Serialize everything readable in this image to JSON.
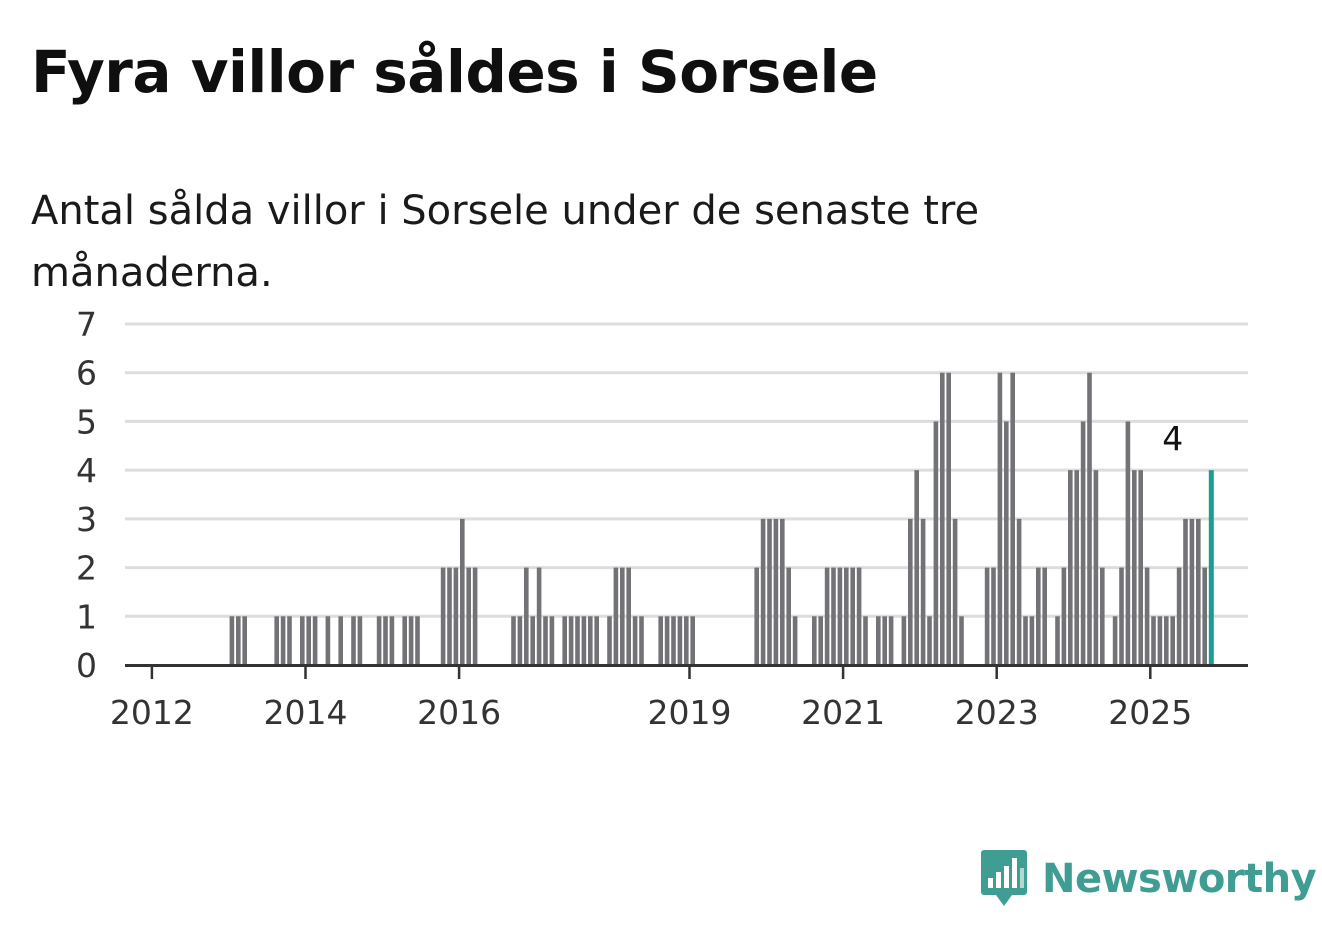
{
  "title": "Fyra villor såldes i Sorsele",
  "subtitle": "Antal sålda villor i Sorsele under de senaste tre månaderna.",
  "brand": {
    "name": "Newsworthy",
    "color": "#3f9d93",
    "icon": "newsworthy-logo-icon"
  },
  "colors": {
    "bar": "#737377",
    "highlight": "#1a9e92",
    "grid": "#dddddd",
    "axis": "#333333"
  },
  "chart_data": {
    "type": "bar",
    "title": "Fyra villor såldes i Sorsele",
    "subtitle": "Antal sålda villor i Sorsele under de senaste tre månaderna.",
    "xlabel": "",
    "ylabel": "",
    "ylim": [
      0,
      7
    ],
    "yticks": [
      0,
      1,
      2,
      3,
      4,
      5,
      6,
      7
    ],
    "xticks": [
      "2012",
      "2014",
      "2016",
      "2019",
      "2021",
      "2023",
      "2025"
    ],
    "grid": true,
    "x_start": "2011-09",
    "x_end": "2025-04",
    "values": [
      0,
      0,
      0,
      0,
      0,
      0,
      0,
      0,
      0,
      0,
      0,
      0,
      0,
      0,
      0,
      0,
      1,
      1,
      1,
      0,
      0,
      0,
      0,
      1,
      1,
      1,
      0,
      1,
      1,
      1,
      0,
      1,
      0,
      1,
      0,
      1,
      1,
      0,
      0,
      1,
      1,
      1,
      0,
      1,
      1,
      1,
      0,
      0,
      0,
      2,
      2,
      2,
      3,
      2,
      2,
      0,
      0,
      0,
      0,
      0,
      1,
      1,
      2,
      1,
      2,
      1,
      1,
      0,
      1,
      1,
      1,
      1,
      1,
      1,
      0,
      1,
      2,
      2,
      2,
      1,
      1,
      0,
      0,
      1,
      1,
      1,
      1,
      1,
      1,
      0,
      0,
      0,
      0,
      0,
      0,
      0,
      0,
      0,
      2,
      3,
      3,
      3,
      3,
      2,
      1,
      0,
      0,
      1,
      1,
      2,
      2,
      2,
      2,
      2,
      2,
      1,
      0,
      1,
      1,
      1,
      0,
      1,
      3,
      4,
      3,
      1,
      5,
      6,
      6,
      3,
      1,
      0,
      0,
      0,
      2,
      2,
      6,
      5,
      6,
      3,
      1,
      1,
      2,
      2,
      0,
      1,
      2,
      4,
      4,
      5,
      6,
      4,
      2,
      0,
      1,
      2,
      5,
      4,
      4,
      2,
      1,
      1,
      1,
      1,
      2,
      3,
      3,
      3,
      2,
      4
    ],
    "highlight": {
      "date": "2025-04",
      "value": 4,
      "label": "4"
    }
  }
}
